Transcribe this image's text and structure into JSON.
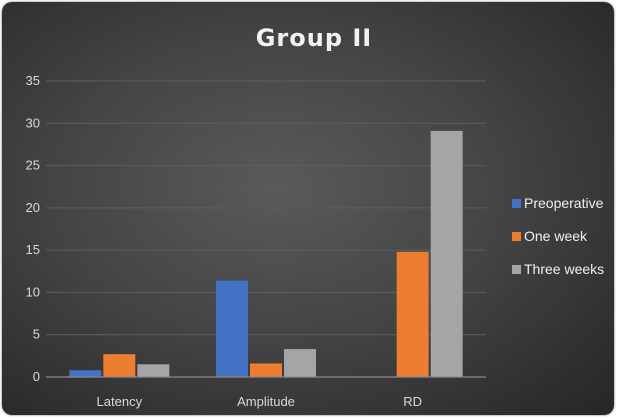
{
  "colors": {
    "preoperative": "#4472c4",
    "one_week": "#ed7d31",
    "three_weeks": "#a5a5a5",
    "gridline": "#5e5e5e",
    "axis": "#8a8a8a"
  },
  "chart_data": {
    "type": "bar",
    "title": "Group II",
    "xlabel": "",
    "ylabel": "",
    "categories": [
      "Latency",
      "Amplitude",
      "RD"
    ],
    "series": [
      {
        "name": "Preoperative",
        "values": [
          0.8,
          11.4,
          0
        ],
        "color": "#4472c4"
      },
      {
        "name": "One week",
        "values": [
          2.7,
          1.6,
          14.8
        ],
        "color": "#ed7d31"
      },
      {
        "name": "Three weeks",
        "values": [
          1.5,
          3.3,
          29.1
        ],
        "color": "#a5a5a5"
      }
    ],
    "ylim": [
      0,
      35
    ],
    "yticks": [
      "0",
      "5",
      "10",
      "15",
      "20",
      "25",
      "30",
      "35"
    ],
    "grid": true,
    "legend_position": "right"
  }
}
